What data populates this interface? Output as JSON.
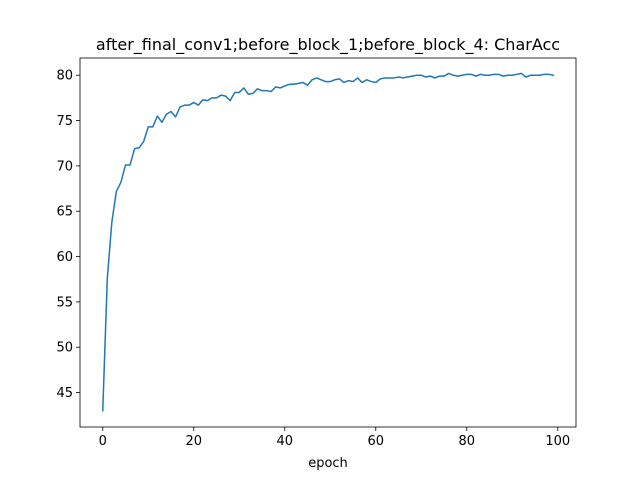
{
  "chart_data": {
    "type": "line",
    "title": "after_final_conv1;before_block_1;before_block_4: CharAcc",
    "xlabel": "epoch",
    "ylabel": "",
    "xlim": [
      -5,
      104
    ],
    "ylim": [
      41.2,
      81.9
    ],
    "grid": false,
    "legend": "none",
    "x_ticks": [
      0,
      20,
      40,
      60,
      80,
      100
    ],
    "y_ticks": [
      45,
      50,
      55,
      60,
      65,
      70,
      75,
      80
    ],
    "series": [
      {
        "color": "#1f77b4",
        "x": [
          0,
          1,
          2,
          3,
          4,
          5,
          6,
          7,
          8,
          9,
          10,
          11,
          12,
          13,
          14,
          15,
          16,
          17,
          18,
          19,
          20,
          21,
          22,
          23,
          24,
          25,
          26,
          27,
          28,
          29,
          30,
          31,
          32,
          33,
          34,
          35,
          36,
          37,
          38,
          39,
          40,
          41,
          42,
          43,
          44,
          45,
          46,
          47,
          48,
          49,
          50,
          51,
          52,
          53,
          54,
          55,
          56,
          57,
          58,
          59,
          60,
          61,
          62,
          63,
          64,
          65,
          66,
          67,
          68,
          69,
          70,
          71,
          72,
          73,
          74,
          75,
          76,
          77,
          78,
          79,
          80,
          81,
          82,
          83,
          84,
          85,
          86,
          87,
          88,
          89,
          90,
          91,
          92,
          93,
          94,
          95,
          96,
          97,
          98,
          99
        ],
        "values": [
          43.0,
          57.6,
          63.8,
          67.2,
          68.2,
          70.1,
          70.1,
          71.9,
          72.0,
          72.7,
          74.3,
          74.3,
          75.5,
          74.8,
          75.7,
          76.0,
          75.4,
          76.5,
          76.7,
          76.7,
          77.0,
          76.7,
          77.3,
          77.2,
          77.5,
          77.5,
          77.8,
          77.7,
          77.2,
          78.1,
          78.1,
          78.6,
          77.9,
          78.0,
          78.5,
          78.3,
          78.3,
          78.2,
          78.7,
          78.6,
          78.8,
          79.0,
          79.0,
          79.1,
          79.2,
          78.9,
          79.5,
          79.7,
          79.5,
          79.3,
          79.3,
          79.5,
          79.6,
          79.2,
          79.4,
          79.3,
          79.7,
          79.2,
          79.5,
          79.3,
          79.2,
          79.6,
          79.7,
          79.7,
          79.7,
          79.8,
          79.7,
          79.8,
          79.9,
          80.0,
          80.0,
          79.8,
          79.9,
          79.7,
          79.9,
          79.9,
          80.2,
          80.0,
          79.9,
          80.0,
          80.1,
          80.1,
          79.9,
          80.1,
          80.0,
          80.0,
          80.1,
          80.1,
          79.9,
          80.0,
          80.0,
          80.1,
          80.2,
          79.8,
          80.0,
          80.0,
          80.0,
          80.1,
          80.1,
          80.0
        ]
      }
    ]
  }
}
